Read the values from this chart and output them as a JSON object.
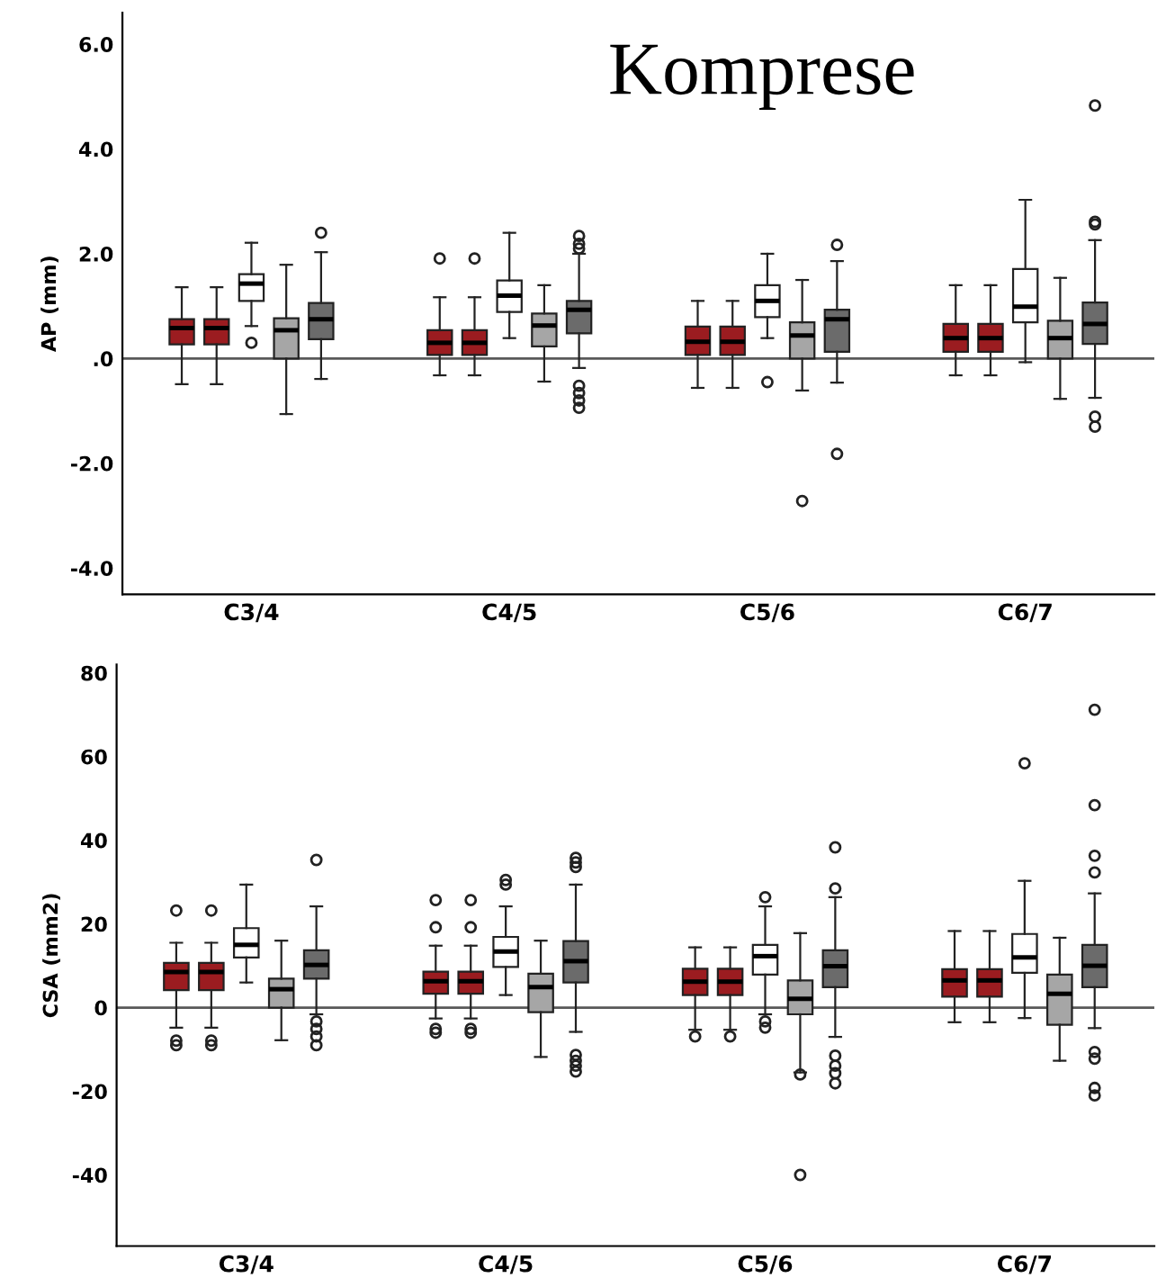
{
  "chart_data": [
    {
      "type": "box",
      "title": "Komprese",
      "ylabel": "AP (mm)",
      "categories": [
        "C3/4",
        "C4/5",
        "C5/6",
        "C6/7"
      ],
      "ylim": [
        -4.5,
        6.6
      ],
      "yticks": [
        {
          "value": 6,
          "label": "6.0"
        },
        {
          "value": 4,
          "label": "4.0"
        },
        {
          "value": 2,
          "label": "2.0"
        },
        {
          "value": 0,
          "label": ".0"
        },
        {
          "value": -2,
          "label": "-2.0"
        },
        {
          "value": -4,
          "label": "-4.0"
        }
      ],
      "ref_lines": [
        {
          "axis": "y",
          "value": 0,
          "color": "#595959"
        }
      ],
      "series": [
        {
          "color": "#9b1c20",
          "boxes": [
            {
              "low": -0.49,
              "q1": 0.27,
              "median": 0.58,
              "q3": 0.75,
              "high": 1.36
            },
            {
              "low": -0.32,
              "q1": 0.07,
              "median": 0.3,
              "q3": 0.54,
              "high": 1.17,
              "outliers": [
                1.91
              ]
            },
            {
              "low": -0.56,
              "q1": 0.07,
              "median": 0.32,
              "q3": 0.61,
              "high": 1.1
            },
            {
              "low": -0.32,
              "q1": 0.13,
              "median": 0.39,
              "q3": 0.66,
              "high": 1.4
            }
          ]
        },
        {
          "color": "#9b1c20",
          "boxes": [
            {
              "low": -0.49,
              "q1": 0.27,
              "median": 0.58,
              "q3": 0.75,
              "high": 1.36
            },
            {
              "low": -0.32,
              "q1": 0.07,
              "median": 0.3,
              "q3": 0.54,
              "high": 1.17,
              "outliers": [
                1.91
              ]
            },
            {
              "low": -0.56,
              "q1": 0.07,
              "median": 0.32,
              "q3": 0.61,
              "high": 1.1
            },
            {
              "low": -0.32,
              "q1": 0.13,
              "median": 0.39,
              "q3": 0.66,
              "high": 1.4
            }
          ]
        },
        {
          "color": "#ffffff",
          "boxes": [
            {
              "low": 0.62,
              "q1": 1.1,
              "median": 1.43,
              "q3": 1.61,
              "high": 2.21,
              "outliers": [
                0.3
              ]
            },
            {
              "low": 0.39,
              "q1": 0.89,
              "median": 1.2,
              "q3": 1.49,
              "high": 2.4
            },
            {
              "low": 0.39,
              "q1": 0.79,
              "median": 1.1,
              "q3": 1.4,
              "high": 2.0,
              "outliers": [
                -0.45
              ]
            },
            {
              "low": -0.07,
              "q1": 0.69,
              "median": 0.99,
              "q3": 1.71,
              "high": 3.03
            }
          ]
        },
        {
          "color": "#a6a6a6",
          "boxes": [
            {
              "low": -1.06,
              "q1": 0.0,
              "median": 0.54,
              "q3": 0.77,
              "high": 1.79
            },
            {
              "low": -0.44,
              "q1": 0.23,
              "median": 0.63,
              "q3": 0.86,
              "high": 1.4
            },
            {
              "low": -0.61,
              "q1": 0.0,
              "median": 0.44,
              "q3": 0.69,
              "high": 1.5,
              "outliers": [
                -2.72
              ]
            },
            {
              "low": -0.77,
              "q1": 0.0,
              "median": 0.39,
              "q3": 0.72,
              "high": 1.54
            }
          ]
        },
        {
          "color": "#6b6b6b",
          "boxes": [
            {
              "low": -0.39,
              "q1": 0.37,
              "median": 0.75,
              "q3": 1.06,
              "high": 2.03,
              "outliers": [
                2.4
              ]
            },
            {
              "low": -0.18,
              "q1": 0.48,
              "median": 0.93,
              "q3": 1.1,
              "high": 2.0,
              "outliers": [
                2.34,
                2.19,
                2.1,
                -0.52,
                -0.66,
                -0.8,
                -0.94
              ]
            },
            {
              "low": -0.46,
              "q1": 0.13,
              "median": 0.75,
              "q3": 0.93,
              "high": 1.86,
              "outliers": [
                2.17,
                -1.82
              ]
            },
            {
              "low": -0.75,
              "q1": 0.28,
              "median": 0.66,
              "q3": 1.07,
              "high": 2.26,
              "outliers": [
                4.83,
                2.61,
                2.56,
                -1.11,
                -1.3
              ]
            }
          ]
        }
      ]
    },
    {
      "type": "box",
      "ylabel": "CSA (mm2)",
      "categories": [
        "C3/4",
        "C4/5",
        "C5/6",
        "C6/7"
      ],
      "ylim": [
        -57,
        82
      ],
      "yticks": [
        80,
        60,
        40,
        20,
        0,
        -20,
        -40
      ],
      "ref_lines": [
        {
          "axis": "y",
          "value": 0,
          "color": "#595959"
        }
      ],
      "series": [
        {
          "color": "#9b1c20",
          "boxes": [
            {
              "low": -4.8,
              "q1": 4.2,
              "median": 8.5,
              "q3": 10.7,
              "high": 15.5,
              "outliers": [
                23.2,
                -7.9,
                -9.0
              ]
            },
            {
              "low": -2.6,
              "q1": 3.3,
              "median": 6.3,
              "q3": 8.6,
              "high": 14.8,
              "outliers": [
                25.7,
                19.2,
                -5.1,
                -6.0
              ]
            },
            {
              "low": -5.3,
              "q1": 3.0,
              "median": 6.2,
              "q3": 9.3,
              "high": 14.4,
              "outliers": [
                -6.9
              ]
            },
            {
              "low": -3.5,
              "q1": 2.6,
              "median": 6.5,
              "q3": 9.2,
              "high": 18.3
            }
          ]
        },
        {
          "color": "#9b1c20",
          "boxes": [
            {
              "low": -4.8,
              "q1": 4.2,
              "median": 8.5,
              "q3": 10.7,
              "high": 15.5,
              "outliers": [
                23.2,
                -7.9,
                -9.0
              ]
            },
            {
              "low": -2.6,
              "q1": 3.3,
              "median": 6.3,
              "q3": 8.6,
              "high": 14.8,
              "outliers": [
                25.7,
                19.2,
                -5.1,
                -6.0
              ]
            },
            {
              "low": -5.3,
              "q1": 3.0,
              "median": 6.2,
              "q3": 9.3,
              "high": 14.4,
              "outliers": [
                -6.9
              ]
            },
            {
              "low": -3.5,
              "q1": 2.6,
              "median": 6.5,
              "q3": 9.2,
              "high": 18.3
            }
          ]
        },
        {
          "color": "#ffffff",
          "boxes": [
            {
              "low": 6.0,
              "q1": 12.0,
              "median": 15.0,
              "q3": 19.0,
              "high": 29.4
            },
            {
              "low": 3.0,
              "q1": 9.7,
              "median": 13.4,
              "q3": 16.9,
              "high": 24.2,
              "outliers": [
                30.5,
                29.4
              ]
            },
            {
              "low": -1.6,
              "q1": 7.9,
              "median": 12.3,
              "q3": 15.0,
              "high": 24.2,
              "outliers": [
                26.4,
                -3.3,
                -4.8
              ]
            },
            {
              "low": -2.5,
              "q1": 8.3,
              "median": 12.0,
              "q3": 17.6,
              "high": 30.3,
              "outliers": [
                58.4
              ]
            }
          ]
        },
        {
          "color": "#a6a6a6",
          "boxes": [
            {
              "low": -7.8,
              "q1": 0.0,
              "median": 4.4,
              "q3": 6.9,
              "high": 16.0
            },
            {
              "low": -11.8,
              "q1": -1.1,
              "median": 4.9,
              "q3": 8.1,
              "high": 16.0
            },
            {
              "low": -15.5,
              "q1": -1.6,
              "median": 2.1,
              "q3": 6.5,
              "high": 17.8,
              "outliers": [
                -16.0,
                -40.0
              ]
            },
            {
              "low": -12.7,
              "q1": -4.1,
              "median": 3.3,
              "q3": 7.9,
              "high": 16.7
            }
          ]
        },
        {
          "color": "#6b6b6b",
          "boxes": [
            {
              "low": -1.6,
              "q1": 6.9,
              "median": 10.2,
              "q3": 13.7,
              "high": 24.2,
              "outliers": [
                35.3,
                -3.3,
                -5.1,
                -6.9,
                -9.0
              ]
            },
            {
              "low": -5.8,
              "q1": 6.0,
              "median": 11.1,
              "q3": 15.9,
              "high": 29.4,
              "outliers": [
                35.8,
                34.7,
                33.6,
                -11.3,
                -12.7,
                -13.9,
                -15.3
              ]
            },
            {
              "low": -7.0,
              "q1": 4.9,
              "median": 9.9,
              "q3": 13.7,
              "high": 26.4,
              "outliers": [
                38.3,
                28.5,
                -11.5,
                -13.9,
                -15.7,
                -18.1
              ]
            },
            {
              "low": -4.9,
              "q1": 4.9,
              "median": 10.0,
              "q3": 15.0,
              "high": 27.3,
              "outliers": [
                71.2,
                48.4,
                36.3,
                32.3,
                -10.6,
                -12.2,
                -19.2,
                -21.0
              ]
            }
          ]
        }
      ]
    }
  ]
}
